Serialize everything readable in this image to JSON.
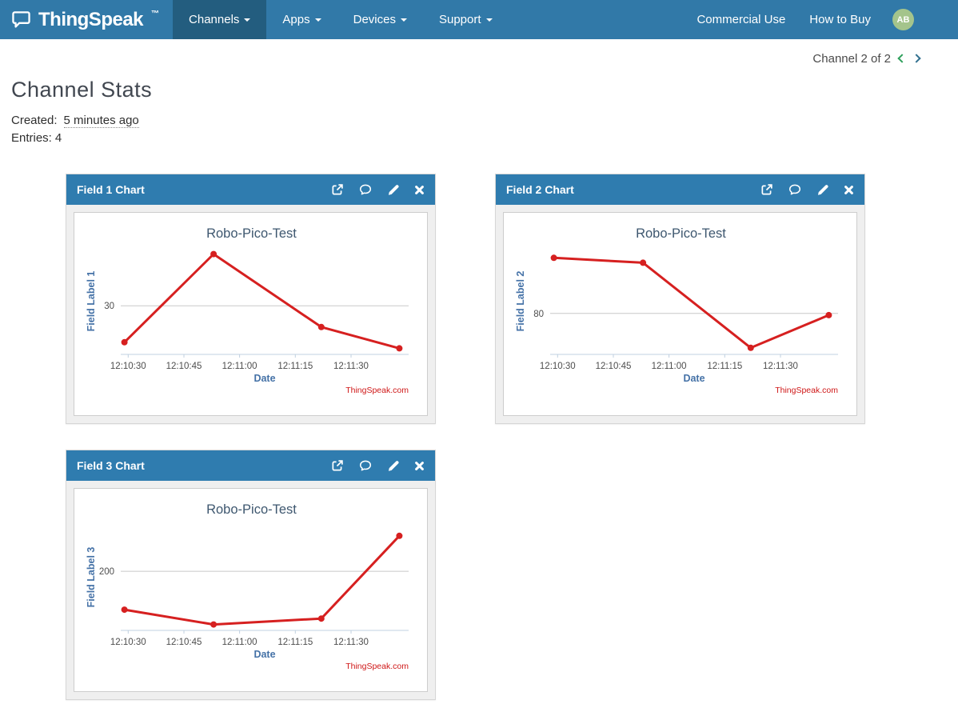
{
  "navbar": {
    "brand": "ThingSpeak",
    "brand_tm": "™",
    "items": [
      {
        "label": "Channels",
        "active": true
      },
      {
        "label": "Apps",
        "active": false
      },
      {
        "label": "Devices",
        "active": false
      },
      {
        "label": "Support",
        "active": false
      }
    ],
    "right_items": [
      {
        "label": "Commercial Use"
      },
      {
        "label": "How to Buy"
      }
    ],
    "avatar_initials": "AB",
    "colors": {
      "bar": "#3179a8",
      "active_item": "#235d7f",
      "avatar_bg": "#a4c48c"
    }
  },
  "pagination": {
    "label": "Channel 2 of 2"
  },
  "page": {
    "title": "Channel Stats",
    "created_label": "Created:",
    "created_value": "5 minutes ago",
    "entries_label": "Entries:",
    "entries_value": "4"
  },
  "panels": [
    {
      "title": "Field 1 Chart"
    },
    {
      "title": "Field 2 Chart"
    },
    {
      "title": "Field 3 Chart"
    }
  ],
  "chart_style": {
    "line": "#d62020",
    "title_color": "#3e576f",
    "axis_title_color": "#4572a7",
    "tick_color": "#4d4d4d",
    "grid_color": "#c8c8c8",
    "axis_line_color": "#c0d0e0",
    "credits_color": "#cf1717"
  },
  "chart_data": [
    {
      "type": "line",
      "title": "Robo-Pico-Test",
      "xlabel": "Date",
      "ylabel": "Field Label 1",
      "credits": "ThingSpeak.com",
      "x_tick_labels": [
        "12:10:30",
        "12:10:45",
        "12:11:00",
        "12:11:15",
        "12:11:30"
      ],
      "x_tick_seconds": [
        30,
        45,
        60,
        75,
        90
      ],
      "x_range_seconds": [
        28,
        105.5
      ],
      "y_range": [
        14,
        49
      ],
      "y_gridline": 30,
      "y_gridline_label": "30",
      "x_times": [
        "12:10:29",
        "12:10:53",
        "12:11:22",
        "12:11:43"
      ],
      "x_seconds": [
        29,
        53,
        82,
        103
      ],
      "values": [
        18,
        47,
        23,
        16
      ]
    },
    {
      "type": "line",
      "title": "Robo-Pico-Test",
      "xlabel": "Date",
      "ylabel": "Field Label 2",
      "credits": "ThingSpeak.com",
      "x_tick_labels": [
        "12:10:30",
        "12:10:45",
        "12:11:00",
        "12:11:15",
        "12:11:30"
      ],
      "x_tick_seconds": [
        30,
        45,
        60,
        75,
        90
      ],
      "x_range_seconds": [
        28,
        105.5
      ],
      "y_range": [
        55,
        120
      ],
      "y_gridline": 80,
      "y_gridline_label": "80",
      "x_times": [
        "12:10:29",
        "12:10:53",
        "12:11:22",
        "12:11:43"
      ],
      "x_seconds": [
        29,
        53,
        82,
        103
      ],
      "values": [
        114,
        111,
        59,
        79
      ]
    },
    {
      "type": "line",
      "title": "Robo-Pico-Test",
      "xlabel": "Date",
      "ylabel": "Field Label 3",
      "credits": "ThingSpeak.com",
      "x_tick_labels": [
        "12:10:30",
        "12:10:45",
        "12:11:00",
        "12:11:15",
        "12:11:30"
      ],
      "x_tick_seconds": [
        30,
        45,
        60,
        75,
        90
      ],
      "x_range_seconds": [
        28,
        105.5
      ],
      "y_range": [
        100,
        280
      ],
      "y_gridline": 200,
      "y_gridline_label": "200",
      "x_times": [
        "12:10:29",
        "12:10:53",
        "12:11:22",
        "12:11:43"
      ],
      "x_seconds": [
        29,
        53,
        82,
        103
      ],
      "values": [
        135,
        110,
        120,
        260
      ]
    }
  ]
}
